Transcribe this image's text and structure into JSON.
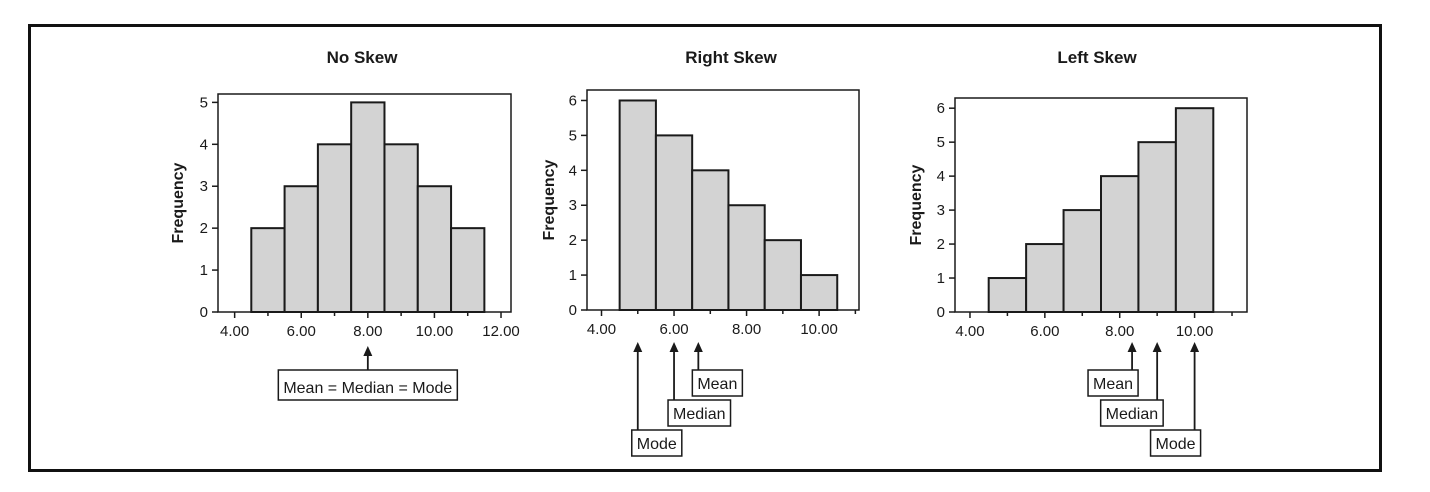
{
  "colors": {
    "bar_fill": "#d3d3d3",
    "bar_stroke": "#1a1a1a",
    "axis": "#1a1a1a",
    "frame": "#111111"
  },
  "chart_data": [
    {
      "type": "bar",
      "title": "No Skew",
      "ylabel": "Frequency",
      "xlabel": "",
      "x_ticks": [
        "4.00",
        "6.00",
        "8.00",
        "10.00",
        "12.00"
      ],
      "y_ticks": [
        "0",
        "1",
        "2",
        "3",
        "4",
        "5"
      ],
      "bins": [
        [
          4.5,
          5.5
        ],
        [
          5.5,
          6.5
        ],
        [
          6.5,
          7.5
        ],
        [
          7.5,
          8.5
        ],
        [
          8.5,
          9.5
        ],
        [
          9.5,
          10.5
        ],
        [
          10.5,
          11.5
        ]
      ],
      "values": [
        2,
        3,
        4,
        5,
        4,
        3,
        2
      ],
      "xlim": [
        3.5,
        12.3
      ],
      "ylim": [
        0,
        5.2
      ],
      "annotations": [
        {
          "label": "Mean = Median = Mode",
          "x": 8.0
        }
      ]
    },
    {
      "type": "bar",
      "title": "Right Skew",
      "ylabel": "Frequency",
      "xlabel": "",
      "x_ticks": [
        "4.00",
        "6.00",
        "8.00",
        "10.00"
      ],
      "y_ticks": [
        "0",
        "1",
        "2",
        "3",
        "4",
        "5",
        "6"
      ],
      "bins": [
        [
          4.5,
          5.5
        ],
        [
          5.5,
          6.5
        ],
        [
          6.5,
          7.5
        ],
        [
          7.5,
          8.5
        ],
        [
          8.5,
          9.5
        ],
        [
          9.5,
          10.5
        ]
      ],
      "values": [
        6,
        5,
        4,
        3,
        2,
        1
      ],
      "xlim": [
        3.6,
        11.1
      ],
      "ylim": [
        0,
        6.3
      ],
      "annotations": [
        {
          "label": "Mode",
          "x": 5.0
        },
        {
          "label": "Median",
          "x": 6.0
        },
        {
          "label": "Mean",
          "x": 6.67
        }
      ]
    },
    {
      "type": "bar",
      "title": "Left Skew",
      "ylabel": "Frequency",
      "xlabel": "",
      "x_ticks": [
        "4.00",
        "6.00",
        "8.00",
        "10.00"
      ],
      "y_ticks": [
        "0",
        "1",
        "2",
        "3",
        "4",
        "5",
        "6"
      ],
      "bins": [
        [
          4.5,
          5.5
        ],
        [
          5.5,
          6.5
        ],
        [
          6.5,
          7.5
        ],
        [
          7.5,
          8.5
        ],
        [
          8.5,
          9.5
        ],
        [
          9.5,
          10.5
        ]
      ],
      "values": [
        1,
        2,
        3,
        4,
        5,
        6
      ],
      "xlim": [
        3.6,
        11.4
      ],
      "ylim": [
        0,
        6.3
      ],
      "annotations": [
        {
          "label": "Mean",
          "x": 8.33
        },
        {
          "label": "Median",
          "x": 9.0
        },
        {
          "label": "Mode",
          "x": 10.0
        }
      ]
    }
  ]
}
